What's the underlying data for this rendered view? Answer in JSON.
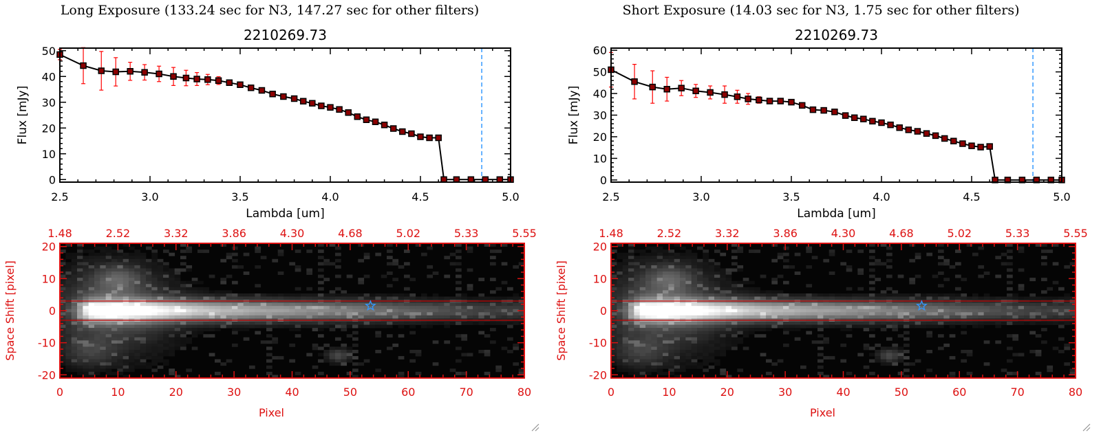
{
  "panels": [
    {
      "title": "Long Exposure (133.24 sec for N3, 147.27 sec for other filters)",
      "spectrum": {
        "title": "2210269.73",
        "xlabel": "Lambda [um]",
        "ylabel": "Flux [mJy]",
        "xticks": [
          "2.5",
          "3.0",
          "3.5",
          "4.0",
          "4.5",
          "5.0"
        ],
        "yticks": [
          "0",
          "10",
          "20",
          "30",
          "40",
          "50"
        ]
      },
      "image2d": {
        "xlabel": "Pixel",
        "ylabel": "Space Shift [pixel]",
        "bottom_ticks": [
          "0",
          "10",
          "20",
          "30",
          "40",
          "50",
          "60",
          "70",
          "80"
        ],
        "top_ticks": [
          "1.48",
          "2.52",
          "3.32",
          "3.86",
          "4.30",
          "4.68",
          "5.02",
          "5.33",
          "5.55"
        ],
        "yticks": [
          "20",
          "10",
          "0",
          "-10",
          "-20"
        ]
      }
    },
    {
      "title": "Short Exposure (14.03 sec for N3, 1.75 sec for other filters)",
      "spectrum": {
        "title": "2210269.73",
        "xlabel": "Lambda [um]",
        "ylabel": "Flux [mJy]",
        "xticks": [
          "2.5",
          "3.0",
          "3.5",
          "4.0",
          "4.5",
          "5.0"
        ],
        "yticks": [
          "0",
          "10",
          "20",
          "30",
          "40",
          "50",
          "60"
        ]
      },
      "image2d": {
        "xlabel": "Pixel",
        "ylabel": "Space Shift [pixel]",
        "bottom_ticks": [
          "0",
          "10",
          "20",
          "30",
          "40",
          "50",
          "60",
          "70",
          "80"
        ],
        "top_ticks": [
          "1.48",
          "2.52",
          "3.32",
          "3.86",
          "4.30",
          "4.68",
          "5.02",
          "5.33",
          "5.55"
        ],
        "yticks": [
          "20",
          "10",
          "0",
          "-10",
          "-20"
        ]
      }
    }
  ],
  "colors": {
    "data_line": "#000000",
    "marker": "#8b0000",
    "error_bar": "#ff0000",
    "vline": "#3399ff",
    "image_axes": "#dd1111",
    "star": "#3399ff"
  },
  "chart_data": [
    {
      "type": "line",
      "title": "2210269.73",
      "xlabel": "Lambda [um]",
      "ylabel": "Flux [mJy]",
      "xlim": [
        2.5,
        5.0
      ],
      "ylim": [
        -1,
        51
      ],
      "x": [
        2.5,
        2.63,
        2.73,
        2.81,
        2.89,
        2.97,
        3.05,
        3.13,
        3.2,
        3.26,
        3.32,
        3.38,
        3.44,
        3.5,
        3.56,
        3.62,
        3.68,
        3.74,
        3.8,
        3.85,
        3.9,
        3.95,
        4.0,
        4.05,
        4.1,
        4.15,
        4.2,
        4.25,
        4.3,
        4.35,
        4.4,
        4.45,
        4.5,
        4.55,
        4.6,
        4.63,
        4.7,
        4.78,
        4.86,
        4.94,
        5.0
      ],
      "y": [
        48.5,
        44.2,
        42.2,
        41.8,
        42.0,
        41.6,
        41.0,
        40.0,
        39.4,
        39.0,
        38.8,
        38.4,
        37.6,
        36.8,
        35.6,
        34.6,
        33.2,
        32.2,
        31.4,
        30.4,
        29.6,
        28.6,
        28.0,
        27.2,
        26.0,
        24.4,
        23.2,
        22.4,
        21.2,
        19.8,
        18.6,
        17.8,
        16.6,
        16.2,
        16.2,
        0,
        0,
        0,
        0,
        0,
        0
      ],
      "yerr": [
        2,
        7,
        7.5,
        5.5,
        3.5,
        3,
        3,
        3.5,
        3,
        2.5,
        2,
        1.5,
        1,
        1,
        0.8,
        0.8,
        0.8,
        0.8,
        0.8,
        0.6,
        0.6,
        0.6,
        0.6,
        0.6,
        0.6,
        0.6,
        0.6,
        0.6,
        0.6,
        0.6,
        0.6,
        0.6,
        0.6,
        0.6,
        0.6,
        0,
        0,
        0,
        0,
        0,
        0
      ],
      "vline_x": 4.84,
      "grid": false
    },
    {
      "type": "line",
      "title": "2210269.73",
      "xlabel": "Lambda [um]",
      "ylabel": "Flux [mJy]",
      "xlim": [
        2.5,
        5.0
      ],
      "ylim": [
        -1,
        61
      ],
      "x": [
        2.5,
        2.63,
        2.73,
        2.81,
        2.89,
        2.97,
        3.05,
        3.13,
        3.2,
        3.26,
        3.32,
        3.38,
        3.44,
        3.5,
        3.56,
        3.62,
        3.68,
        3.74,
        3.8,
        3.85,
        3.9,
        3.95,
        4.0,
        4.05,
        4.1,
        4.15,
        4.2,
        4.25,
        4.3,
        4.35,
        4.4,
        4.45,
        4.5,
        4.55,
        4.6,
        4.63,
        4.7,
        4.78,
        4.86,
        4.94,
        5.0
      ],
      "y": [
        51,
        45.5,
        43,
        42,
        42.5,
        41.2,
        40.5,
        39.5,
        38.5,
        37.5,
        37,
        36.5,
        36.5,
        36,
        34.5,
        32.5,
        32.2,
        31.5,
        29.8,
        28.8,
        28.2,
        27.2,
        26.5,
        25.5,
        24.2,
        23.2,
        22.5,
        21.5,
        20.5,
        19.2,
        18,
        16.8,
        15.8,
        15.2,
        15.5,
        0,
        0,
        0,
        0,
        0,
        0
      ],
      "yerr": [
        8,
        8,
        7.5,
        5.5,
        3.5,
        3,
        3,
        4,
        3,
        2.5,
        1.5,
        1,
        1,
        1,
        0.8,
        0.8,
        0.8,
        0.8,
        0.8,
        0.6,
        0.6,
        0.6,
        0.6,
        0.6,
        0.6,
        0.6,
        0.6,
        0.6,
        0.6,
        0.6,
        0.6,
        0.6,
        0.6,
        0.6,
        0.6,
        0,
        0,
        0,
        0,
        0,
        0
      ],
      "vline_x": 4.84,
      "grid": false
    },
    {
      "type": "heatmap",
      "xlabel": "Pixel",
      "ylabel": "Space Shift [pixel]",
      "xlim": [
        0,
        80
      ],
      "ylim": [
        -21,
        21
      ],
      "extraction_band": [
        -3,
        3
      ],
      "star_marker": {
        "x": 53.5,
        "y": 1.5
      }
    },
    {
      "type": "heatmap",
      "xlabel": "Pixel",
      "ylabel": "Space Shift [pixel]",
      "xlim": [
        0,
        80
      ],
      "ylim": [
        -21,
        21
      ],
      "extraction_band": [
        -3,
        3
      ],
      "star_marker": {
        "x": 53.5,
        "y": 1.5
      }
    }
  ]
}
